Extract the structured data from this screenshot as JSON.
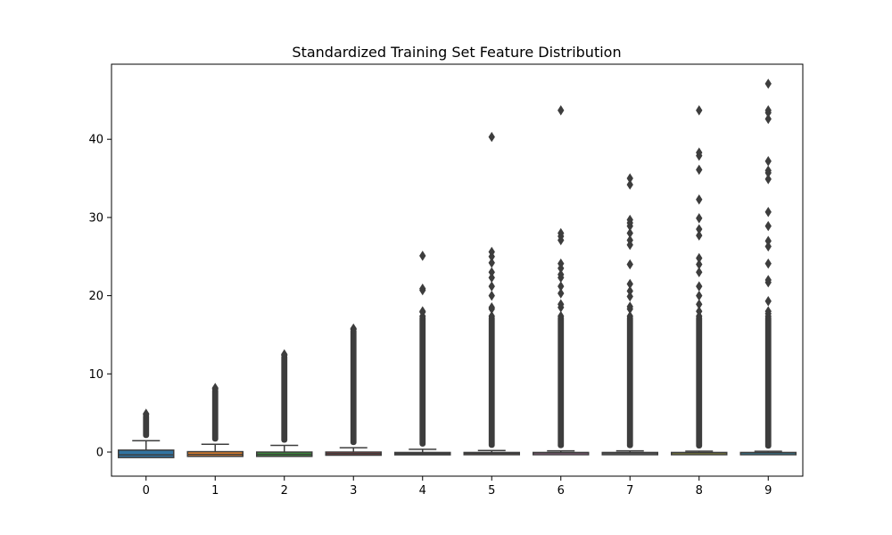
{
  "chart_data": {
    "type": "box",
    "title": "Standardized Training Set Feature Distribution",
    "xlabel": "",
    "ylabel": "",
    "categories": [
      "0",
      "1",
      "2",
      "3",
      "4",
      "5",
      "6",
      "7",
      "8",
      "9"
    ],
    "ylim": [
      -3,
      49
    ],
    "yticks": [
      0,
      10,
      20,
      30,
      40
    ],
    "grid": false,
    "series": [
      {
        "category": "0",
        "color": "#3274a1",
        "q1": -0.7,
        "median": -0.35,
        "q3": 0.25,
        "whisker_low": -0.7,
        "whisker_high": 1.45,
        "outlier_max": 4.9
      },
      {
        "category": "1",
        "color": "#e1812c",
        "q1": -0.55,
        "median": -0.3,
        "q3": 0.05,
        "whisker_low": -0.55,
        "whisker_high": 1.0,
        "outlier_max": 8.2
      },
      {
        "category": "2",
        "color": "#3a923a",
        "q1": -0.55,
        "median": -0.3,
        "q3": 0.0,
        "whisker_low": -0.55,
        "whisker_high": 0.85,
        "outlier_max": 12.5
      },
      {
        "category": "3",
        "color": "#c03d3e",
        "q1": -0.4,
        "median": -0.2,
        "q3": 0.0,
        "whisker_low": -0.4,
        "whisker_high": 0.55,
        "outlier_max": 15.8
      },
      {
        "category": "4",
        "color": "#9372b2",
        "q1": -0.35,
        "median": -0.2,
        "q3": -0.05,
        "whisker_low": -0.35,
        "whisker_high": 0.35,
        "outlier_max": 25.1
      },
      {
        "category": "5",
        "color": "#845b53",
        "q1": -0.25,
        "median": -0.15,
        "q3": -0.05,
        "whisker_low": -0.25,
        "whisker_high": 0.2,
        "outlier_max": 40.3
      },
      {
        "category": "6",
        "color": "#d684bd",
        "q1": -0.25,
        "median": -0.12,
        "q3": -0.05,
        "whisker_low": -0.25,
        "whisker_high": 0.15,
        "outlier_max": 43.7
      },
      {
        "category": "7",
        "color": "#7f7f7f",
        "q1": -0.25,
        "median": -0.12,
        "q3": -0.05,
        "whisker_low": -0.25,
        "whisker_high": 0.15,
        "outlier_max": 35.0
      },
      {
        "category": "8",
        "color": "#a9aa35",
        "q1": -0.22,
        "median": -0.1,
        "q3": -0.05,
        "whisker_low": -0.22,
        "whisker_high": 0.12,
        "outlier_max": 43.7
      },
      {
        "category": "9",
        "color": "#2e9ec6",
        "q1": -0.2,
        "median": -0.1,
        "q3": -0.05,
        "whisker_low": -0.2,
        "whisker_high": 0.1,
        "outlier_max": 47.1
      }
    ],
    "sparse_outliers": [
      [],
      [],
      [],
      [],
      [
        17.9,
        18.0,
        20.7,
        20.9,
        25.1
      ],
      [
        18.3,
        18.5,
        20.0,
        21.2,
        22.3,
        23.0,
        24.2,
        25.0,
        25.6,
        40.3
      ],
      [
        18.5,
        18.9,
        20.3,
        21.2,
        22.3,
        22.7,
        23.5,
        24.1,
        27.1,
        27.6,
        28.0,
        43.7
      ],
      [
        18.3,
        18.6,
        19.9,
        20.6,
        21.5,
        24.0,
        26.5,
        27.1,
        28.0,
        28.9,
        29.3,
        29.7,
        34.2,
        35.0
      ],
      [
        18.0,
        18.9,
        20.0,
        21.2,
        23.0,
        24.0,
        24.8,
        27.7,
        28.5,
        29.9,
        32.3,
        36.1,
        37.9,
        38.3,
        43.7
      ],
      [
        17.7,
        18.0,
        19.3,
        21.7,
        22.0,
        24.1,
        26.3,
        27.0,
        28.9,
        30.7,
        34.9,
        35.7,
        36.0,
        37.2,
        42.6,
        43.4,
        43.7,
        47.1
      ]
    ]
  }
}
